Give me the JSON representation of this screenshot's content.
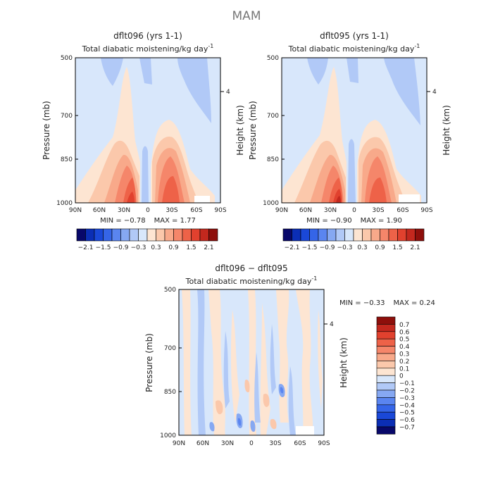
{
  "figure": {
    "season": "MAM"
  },
  "palette_full": [
    "#08086a",
    "#0b2eb5",
    "#1a48d8",
    "#3565e8",
    "#5a85f0",
    "#86a8f2",
    "#b1c9f7",
    "#d8e7fb",
    "#fde5d2",
    "#fbc8ab",
    "#f8a98a",
    "#f5866a",
    "#ee6248",
    "#e1412e",
    "#c3281e",
    "#8e0f0b"
  ],
  "chart_data": [
    {
      "id": "panel_a",
      "type": "contour",
      "title": "dflt096 (yrs 1-1)",
      "subtitle": "Total diabatic moistening/kg day",
      "subtitle_exponent": "-1",
      "xlabel": "",
      "ylabel": "Pressure (mb)",
      "y2label": "Height (km)",
      "x_ticks": [
        "90N",
        "60N",
        "30N",
        "0",
        "30S",
        "60S",
        "90S"
      ],
      "y_ticks": [
        "500",
        "700",
        "850",
        "1000"
      ],
      "y2_ticks": [
        "4"
      ],
      "stats": {
        "min_label": "MIN =",
        "min": "−0.78",
        "max_label": "MAX =",
        "max": "1.77"
      },
      "colorbar_labels": [
        "−2.1",
        "−1.5",
        "−0.9",
        "−0.3",
        "0.3",
        "0.9",
        "1.5",
        "2.1"
      ]
    },
    {
      "id": "panel_b",
      "type": "contour",
      "title": "dflt095 (yrs 1-1)",
      "subtitle": "Total diabatic moistening/kg day",
      "subtitle_exponent": "-1",
      "xlabel": "",
      "ylabel": "Pressure (mb)",
      "y2label": "Height (km)",
      "x_ticks": [
        "90N",
        "60N",
        "30N",
        "0",
        "30S",
        "60S",
        "90S"
      ],
      "y_ticks": [
        "500",
        "700",
        "850",
        "1000"
      ],
      "y2_ticks": [
        "4"
      ],
      "stats": {
        "min_label": "MIN =",
        "min": "−0.90",
        "max_label": "MAX =",
        "max": "1.90"
      },
      "colorbar_labels": [
        "−2.1",
        "−1.5",
        "−0.9",
        "−0.3",
        "0.3",
        "0.9",
        "1.5",
        "2.1"
      ]
    },
    {
      "id": "panel_c",
      "type": "contour",
      "title": "dflt096 − dflt095",
      "subtitle": "Total diabatic moistening/kg day",
      "subtitle_exponent": "-1",
      "xlabel": "",
      "ylabel": "Pressure (mb)",
      "y2label": "Height (km)",
      "x_ticks": [
        "90N",
        "60N",
        "30N",
        "0",
        "30S",
        "60S",
        "90S"
      ],
      "y_ticks": [
        "500",
        "700",
        "850",
        "1000"
      ],
      "y2_ticks": [
        "4"
      ],
      "stats": {
        "min_label": "MIN =",
        "min": "−0.33",
        "max_label": "MAX =",
        "max": "0.24"
      },
      "colorbar_labels": [
        "0.7",
        "0.6",
        "0.5",
        "0.4",
        "0.3",
        "0.2",
        "0.1",
        "0",
        "−0.1",
        "−0.2",
        "−0.3",
        "−0.4",
        "−0.5",
        "−0.6",
        "−0.7"
      ],
      "colorbar_colors": [
        "#8e0f0b",
        "#c3281e",
        "#e1412e",
        "#ee6248",
        "#f5866a",
        "#f8a98a",
        "#fbc8ab",
        "#fde5d2",
        "#d8e7fb",
        "#b1c9f7",
        "#86a8f2",
        "#5a85f0",
        "#3565e8",
        "#1a48d8",
        "#0b2eb5",
        "#08086a"
      ]
    }
  ]
}
